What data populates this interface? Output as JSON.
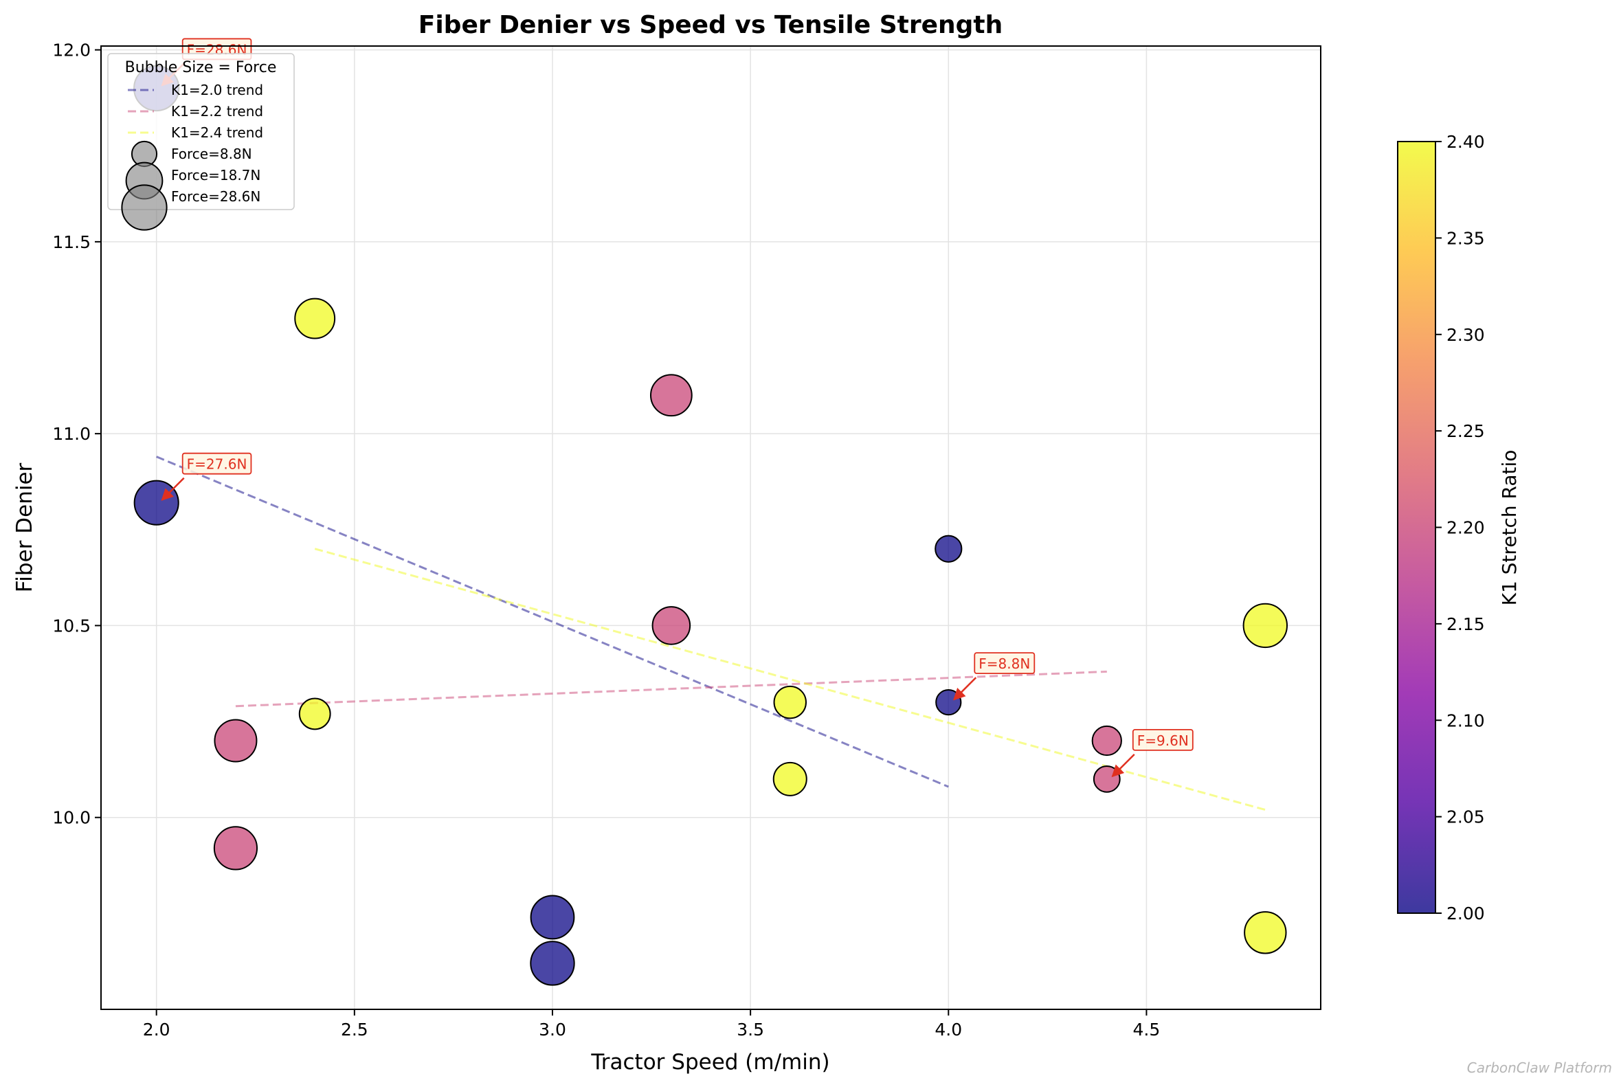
{
  "chart_data": {
    "type": "scatter",
    "title": "Fiber Denier vs Speed vs Tensile Strength",
    "xlabel": "Tractor Speed (m/min)",
    "ylabel": "Fiber Denier",
    "xlim": [
      1.86,
      4.94
    ],
    "ylim": [
      9.5,
      12.01
    ],
    "xticks": [
      2.0,
      2.5,
      3.0,
      3.5,
      4.0,
      4.5
    ],
    "yticks": [
      10.0,
      10.5,
      11.0,
      11.5,
      12.0
    ],
    "grid": true,
    "points": [
      {
        "x": 2.0,
        "y": 11.9,
        "force": 28.6,
        "k1": 2.0
      },
      {
        "x": 2.0,
        "y": 10.82,
        "force": 27.6,
        "k1": 2.0
      },
      {
        "x": 3.0,
        "y": 9.74,
        "force": 26.5,
        "k1": 2.0
      },
      {
        "x": 3.0,
        "y": 9.62,
        "force": 27.0,
        "k1": 2.0
      },
      {
        "x": 4.0,
        "y": 10.7,
        "force": 9.8,
        "k1": 2.0
      },
      {
        "x": 4.0,
        "y": 10.3,
        "force": 8.8,
        "k1": 2.0
      },
      {
        "x": 2.2,
        "y": 10.2,
        "force": 25.0,
        "k1": 2.2
      },
      {
        "x": 2.2,
        "y": 9.92,
        "force": 26.0,
        "k1": 2.2
      },
      {
        "x": 3.3,
        "y": 11.1,
        "force": 24.0,
        "k1": 2.2
      },
      {
        "x": 3.3,
        "y": 10.5,
        "force": 20.0,
        "k1": 2.2
      },
      {
        "x": 4.4,
        "y": 10.2,
        "force": 12.0,
        "k1": 2.2
      },
      {
        "x": 4.4,
        "y": 10.1,
        "force": 9.6,
        "k1": 2.2
      },
      {
        "x": 2.4,
        "y": 11.3,
        "force": 22.5,
        "k1": 2.4
      },
      {
        "x": 2.4,
        "y": 10.27,
        "force": 13.5,
        "k1": 2.4
      },
      {
        "x": 3.6,
        "y": 10.3,
        "force": 14.5,
        "k1": 2.4
      },
      {
        "x": 3.6,
        "y": 10.1,
        "force": 15.5,
        "k1": 2.4
      },
      {
        "x": 4.8,
        "y": 10.5,
        "force": 27.0,
        "k1": 2.4
      },
      {
        "x": 4.8,
        "y": 9.7,
        "force": 24.5,
        "k1": 2.4
      }
    ],
    "trends": [
      {
        "name": "K1=2.0 trend",
        "k1": 2.0,
        "color": "#0d0887",
        "x": [
          2.0,
          4.0
        ],
        "y": [
          10.94,
          10.08
        ]
      },
      {
        "name": "K1=2.2 trend",
        "k1": 2.2,
        "color": "#cc4778",
        "x": [
          2.2,
          4.4
        ],
        "y": [
          10.29,
          10.38
        ]
      },
      {
        "name": "K1=2.4 trend",
        "k1": 2.4,
        "color": "#f0f921",
        "x": [
          2.4,
          4.8
        ],
        "y": [
          10.7,
          10.02
        ]
      }
    ],
    "annotations": [
      {
        "text": "F=28.6N",
        "x": 2.0,
        "y": 11.9
      },
      {
        "text": "F=27.6N",
        "x": 2.0,
        "y": 10.82
      },
      {
        "text": "F=8.8N",
        "x": 4.0,
        "y": 10.3
      },
      {
        "text": "F=9.6N",
        "x": 4.4,
        "y": 10.1
      }
    ],
    "legend": {
      "title": "Bubble Size = Force",
      "position": "top-left",
      "line_entries": [
        "K1=2.0 trend",
        "K1=2.2 trend",
        "K1=2.4 trend"
      ],
      "size_entries": [
        {
          "label": "Force=8.8N",
          "force": 8.8
        },
        {
          "label": "Force=18.7N",
          "force": 18.7
        },
        {
          "label": "Force=28.6N",
          "force": 28.6
        }
      ]
    },
    "colorbar": {
      "label": "K1 Stretch Ratio",
      "min": 2.0,
      "max": 2.4,
      "ticks": [
        "2.00",
        "2.05",
        "2.10",
        "2.15",
        "2.20",
        "2.25",
        "2.30",
        "2.35",
        "2.40"
      ],
      "colormap": [
        "#0d0887",
        "#5302a3",
        "#8b0aa5",
        "#b83289",
        "#db5c68",
        "#f48849",
        "#febd2a",
        "#f0f921"
      ]
    },
    "watermark": "CarbonClaw Platform"
  }
}
